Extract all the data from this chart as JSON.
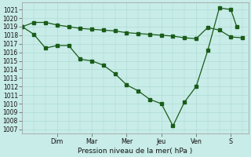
{
  "xlabel": "Pression niveau de la mer( hPa )",
  "background_color": "#c8ece8",
  "grid_color": "#aad8d0",
  "line_color": "#1a5c1a",
  "ylim_min": 1006.5,
  "ylim_max": 1021.8,
  "yticks": [
    1007,
    1008,
    1009,
    1010,
    1011,
    1012,
    1013,
    1014,
    1015,
    1016,
    1017,
    1018,
    1019,
    1020,
    1021
  ],
  "day_labels": [
    "Dim",
    "Mar",
    "Mer",
    "Jeu",
    "Ven",
    "S"
  ],
  "day_x": [
    24,
    48,
    72,
    96,
    120,
    144
  ],
  "xlim_min": 0,
  "xlim_max": 156,
  "line1_x": [
    0,
    8,
    16,
    24,
    32,
    40,
    48,
    56,
    64,
    72,
    80,
    88,
    96,
    104,
    112,
    120,
    128,
    136,
    144,
    152
  ],
  "line1_y": [
    1019.0,
    1019.5,
    1019.5,
    1019.2,
    1019.0,
    1018.8,
    1018.7,
    1018.6,
    1018.5,
    1018.3,
    1018.2,
    1018.1,
    1018.0,
    1017.9,
    1017.7,
    1017.6,
    1018.9,
    1018.6,
    1017.8,
    1017.7
  ],
  "line2_x": [
    0,
    8,
    16,
    24,
    32,
    40,
    48,
    56,
    64,
    72,
    80,
    88,
    96,
    104,
    112,
    120,
    128,
    136,
    144,
    148
  ],
  "line2_y": [
    1019.0,
    1018.1,
    1016.5,
    1016.8,
    1016.8,
    1015.2,
    1015.0,
    1014.5,
    1013.5,
    1012.2,
    1011.5,
    1010.5,
    1010.0,
    1007.4,
    1010.2,
    1012.0,
    1016.2,
    1021.2,
    1021.0,
    1019.0
  ],
  "ytick_fontsize": 5.5,
  "xtick_fontsize": 5.8,
  "xlabel_fontsize": 6.5,
  "linewidth": 0.9,
  "markersize": 2.2
}
